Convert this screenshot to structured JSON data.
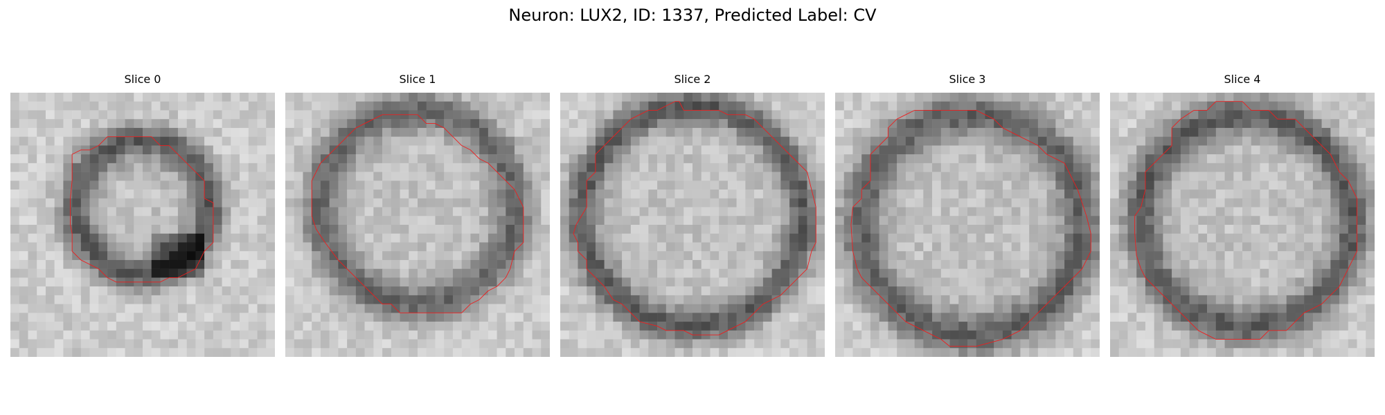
{
  "title": "Neuron: LUX2, ID: 1337, Predicted Label: CV",
  "colors": {
    "contour": "#ee1d1d",
    "background": "#ffffff",
    "colormap": "gray"
  },
  "panels": [
    {
      "title": "Slice 0"
    },
    {
      "title": "Slice 1"
    },
    {
      "title": "Slice 2"
    },
    {
      "title": "Slice 3"
    },
    {
      "title": "Slice 4"
    }
  ]
}
